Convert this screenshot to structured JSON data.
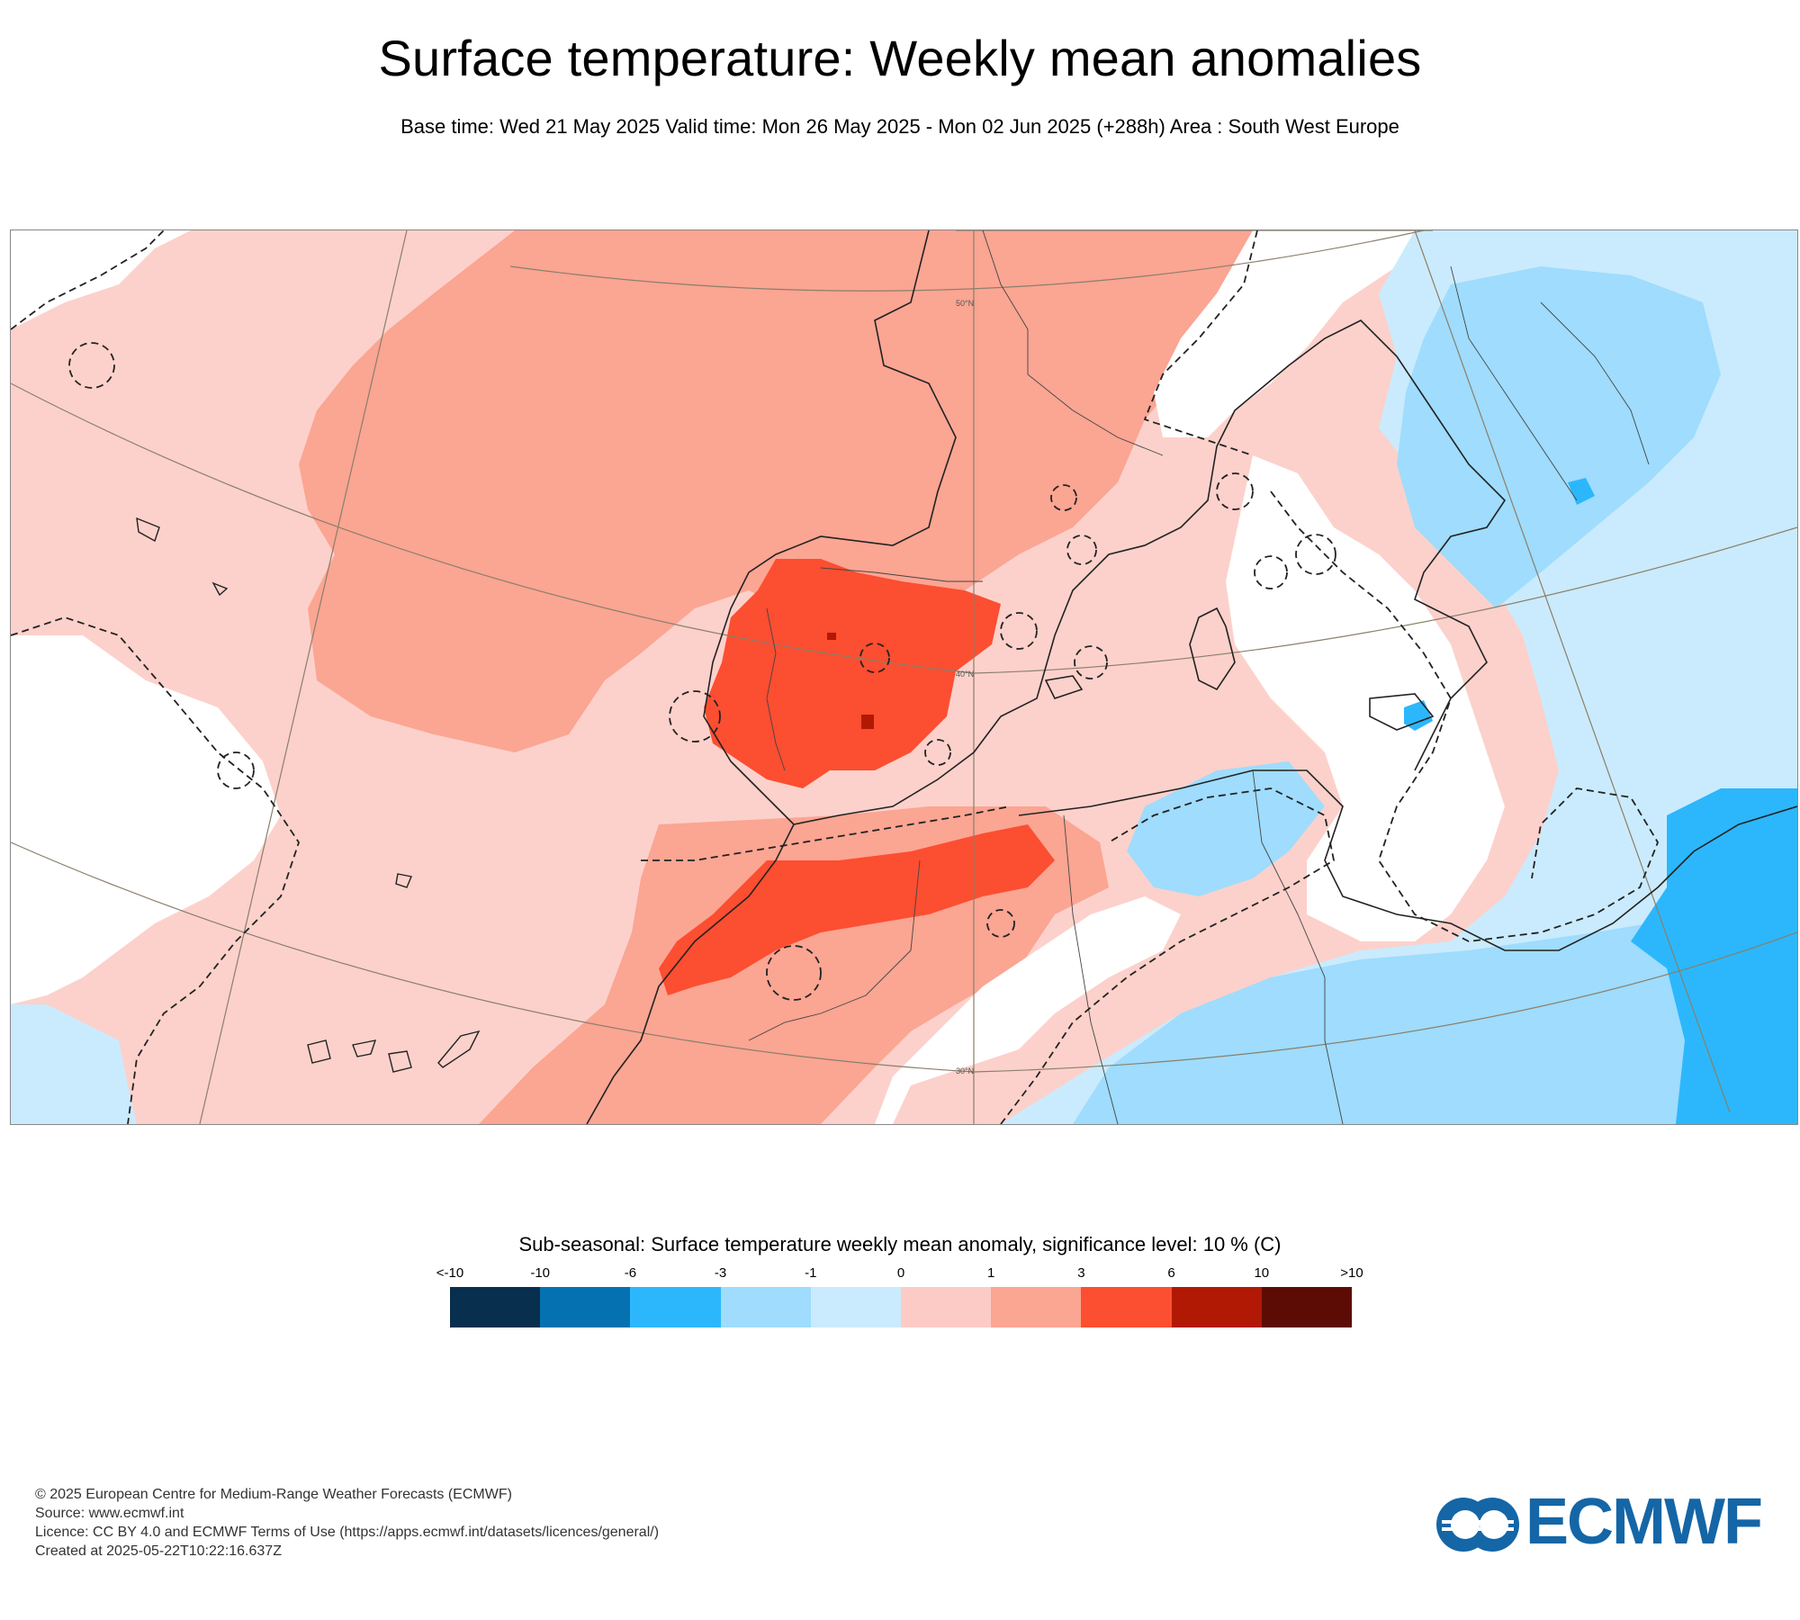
{
  "header": {
    "title": "Surface temperature: Weekly mean anomalies",
    "subtitle": "Base time: Wed 21 May 2025 Valid time: Mon 26 May 2025 - Mon 02 Jun 2025 (+288h) Area : South West Europe"
  },
  "map": {
    "area": "South West Europe",
    "gridlines": [
      "50°N",
      "40°N",
      "30°N"
    ],
    "default_fill": "#fcd1cb"
  },
  "legend": {
    "title": "Sub-seasonal: Surface temperature weekly mean anomaly, significance level: 10 % (C)",
    "ticks": [
      "<-10",
      "-10",
      "-6",
      "-3",
      "-1",
      "0",
      "1",
      "3",
      "6",
      "10",
      ">10"
    ],
    "colors": [
      "#082f4e",
      "#0571b0",
      "#2cb7fc",
      "#9fdcfd",
      "#caebfd",
      "#fdcbc5",
      "#fba593",
      "#fc4e31",
      "#b11904",
      "#5c0c04"
    ]
  },
  "footer": {
    "copyright": "© 2025 European Centre for Medium-Range Weather Forecasts (ECMWF)",
    "source": "Source: www.ecmwf.int",
    "licence": "Licence: CC BY 4.0 and ECMWF Terms of Use (https://apps.ecmwf.int/datasets/licences/general/)",
    "created": "Created at 2025-05-22T10:22:16.637Z"
  },
  "logo": {
    "text": "ECMWF",
    "color": "#1466a6"
  }
}
